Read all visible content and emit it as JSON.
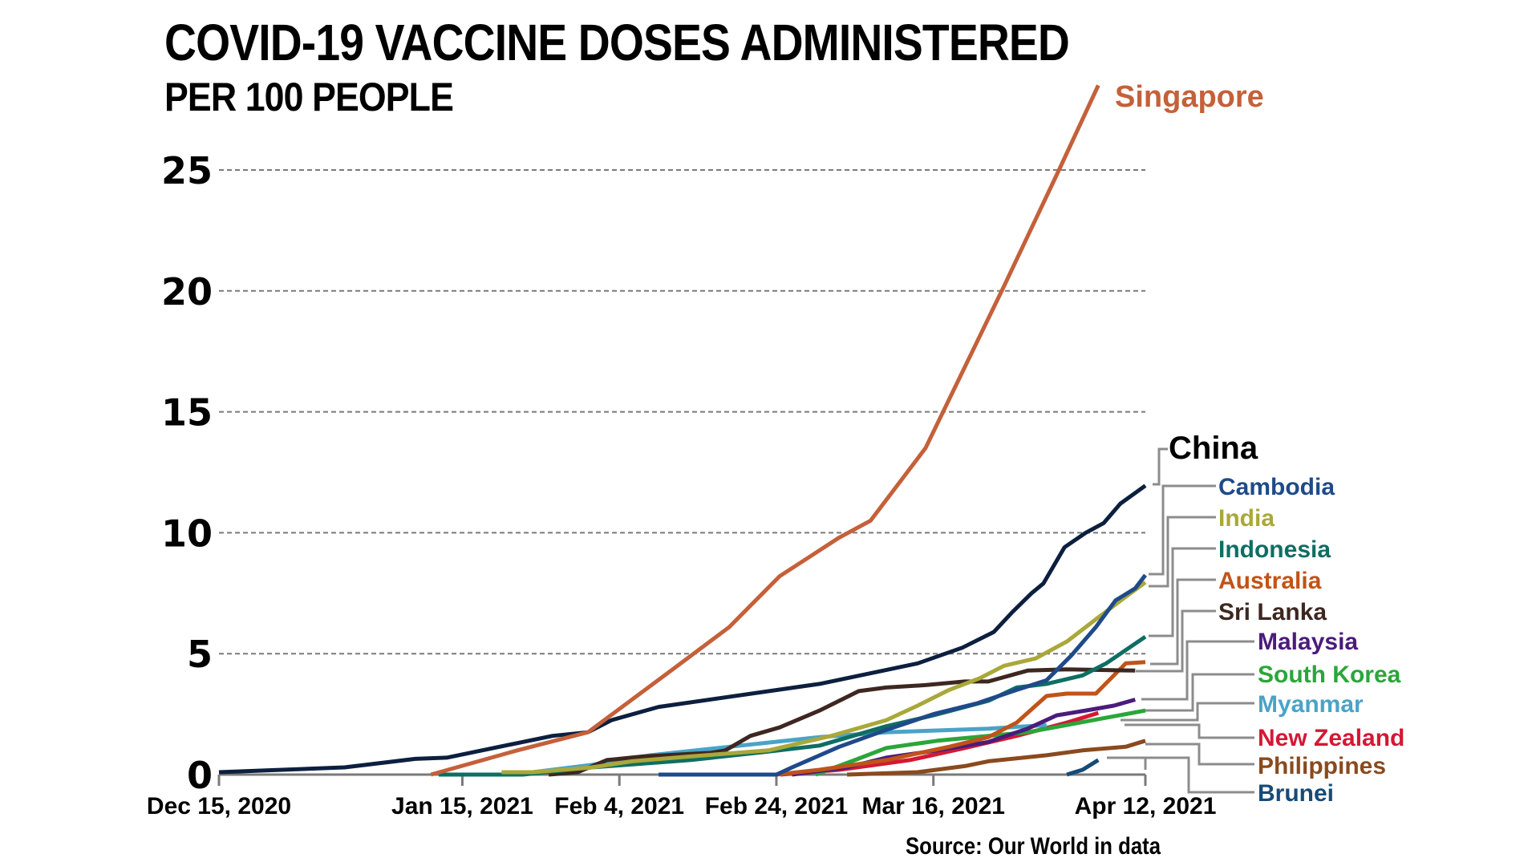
{
  "chart_data": {
    "type": "line",
    "title": "COVID-19 VACCINE DOSES ADMINISTERED",
    "subtitle": "PER 100 PEOPLE",
    "source": "Source: Our World in data",
    "xlabel": "",
    "ylabel": "",
    "x_unit": "days since Dec 15, 2020",
    "xlim": [
      0,
      118
    ],
    "ylim": [
      0,
      25
    ],
    "grid": true,
    "y_ticks": [
      0,
      5,
      10,
      15,
      20,
      25
    ],
    "y_tick_labels": [
      "0",
      "5",
      "10",
      "15",
      "20",
      "25"
    ],
    "x_ticks": [
      0,
      31,
      51,
      71,
      91,
      118
    ],
    "x_tick_labels": [
      "Dec 15, 2020",
      "Jan 15, 2021",
      "Feb 4, 2021",
      "Feb 24, 2021",
      "Mar 16, 2021",
      "Apr 12, 2021"
    ],
    "legend_placement": "right (direct labels with leader lines)",
    "series": [
      {
        "name": "Singapore",
        "color": "#c4603a",
        "x": [
          27,
          38,
          47,
          58,
          65,
          71.4,
          79,
          83,
          90,
          100,
          107,
          112
        ],
        "y": [
          0,
          1.0,
          1.75,
          4.4,
          6.1,
          8.2,
          9.8,
          10.5,
          13.5,
          20.2,
          25,
          28.5
        ]
      },
      {
        "name": "China",
        "color": "#0c1f3f",
        "x": [
          0,
          16,
          25,
          29,
          42.5,
          47,
          50,
          56,
          76.5,
          89,
          94.7,
          98.7,
          101,
          103.5,
          105,
          107.7,
          110.4,
          112.7,
          114.8,
          118
        ],
        "y": [
          0.1,
          0.3,
          0.65,
          0.7,
          1.6,
          1.75,
          2.25,
          2.8,
          3.75,
          4.6,
          5.25,
          5.9,
          6.7,
          7.5,
          7.9,
          9.4,
          10.0,
          10.4,
          11.2,
          11.95
        ]
      },
      {
        "name": "Cambodia",
        "color": "#1f4a8a",
        "x": [
          56,
          71,
          73,
          79,
          85,
          91,
          96.6,
          101.6,
          105.4,
          108.5,
          111.7,
          114.2,
          116.7,
          118
        ],
        "y": [
          0,
          0,
          0.3,
          1.15,
          1.85,
          2.5,
          2.95,
          3.5,
          3.9,
          4.9,
          6.1,
          7.2,
          7.7,
          8.25
        ]
      },
      {
        "name": "India",
        "color": "#a9a83a",
        "x": [
          36,
          40,
          47.5,
          52.6,
          60,
          70,
          78,
          85,
          89,
          93,
          97,
          100,
          104,
          108,
          112,
          115.5,
          118
        ],
        "y": [
          0.1,
          0.1,
          0.3,
          0.55,
          0.75,
          1.0,
          1.6,
          2.25,
          2.85,
          3.5,
          4.0,
          4.5,
          4.8,
          5.5,
          6.5,
          7.35,
          7.95
        ]
      },
      {
        "name": "Indonesia",
        "color": "#0e6e62",
        "x": [
          28,
          38.7,
          47.5,
          60,
          70,
          76.5,
          85,
          91,
          98,
          101.6,
          105.4,
          110,
          113,
          118
        ],
        "y": [
          0,
          0,
          0.3,
          0.6,
          0.95,
          1.2,
          2.0,
          2.45,
          3.05,
          3.6,
          3.75,
          4.1,
          4.6,
          5.7
        ]
      },
      {
        "name": "Australia",
        "color": "#c05418",
        "x": [
          71,
          76.5,
          85,
          93,
          98,
          101.6,
          105.4,
          108,
          111.7,
          115.5,
          118
        ],
        "y": [
          0,
          0.2,
          0.6,
          1.15,
          1.55,
          2.15,
          3.25,
          3.35,
          3.35,
          4.6,
          4.65
        ]
      },
      {
        "name": "Sri Lanka",
        "color": "#3d2720",
        "x": [
          42,
          45.7,
          49.4,
          54,
          62.6,
          64.5,
          67.7,
          71.4,
          76.5,
          81.5,
          85,
          90,
          95,
          98,
          103,
          108,
          116.7
        ],
        "y": [
          0,
          0.1,
          0.6,
          0.75,
          0.9,
          1.0,
          1.6,
          1.95,
          2.65,
          3.45,
          3.6,
          3.7,
          3.85,
          3.85,
          4.3,
          4.35,
          4.3
        ]
      },
      {
        "name": "Malaysia",
        "color": "#4b1b7c",
        "x": [
          73,
          80,
          85,
          91.5,
          98,
          103,
          106.7,
          110.4,
          114,
          116.7
        ],
        "y": [
          0,
          0.3,
          0.7,
          1.0,
          1.35,
          1.9,
          2.45,
          2.65,
          2.85,
          3.1
        ]
      },
      {
        "name": "South Korea",
        "color": "#2aa63a",
        "x": [
          76,
          81,
          85,
          91.5,
          98,
          103,
          108,
          113,
          118
        ],
        "y": [
          0,
          0.6,
          1.1,
          1.4,
          1.6,
          1.75,
          2.05,
          2.35,
          2.65
        ]
      },
      {
        "name": "Myanmar",
        "color": "#4aa3c8",
        "x": [
          40,
          47.5,
          55,
          65,
          76.5,
          85,
          98,
          105.4
        ],
        "y": [
          0.1,
          0.4,
          0.8,
          1.15,
          1.55,
          1.75,
          1.9,
          2.05
        ]
      },
      {
        "name": "New Zealand",
        "color": "#d41834",
        "x": [
          71.5,
          79,
          88,
          95,
          101.6,
          108,
          112
        ],
        "y": [
          0,
          0.2,
          0.6,
          1.1,
          1.6,
          2.15,
          2.55
        ]
      },
      {
        "name": "Philippines",
        "color": "#8a4a1e",
        "x": [
          80,
          89,
          95,
          98,
          105.4,
          110,
          115.5,
          118
        ],
        "y": [
          0,
          0.1,
          0.35,
          0.55,
          0.8,
          1.0,
          1.15,
          1.4
        ]
      },
      {
        "name": "Brunei",
        "color": "#164b78",
        "x": [
          108,
          110,
          112
        ],
        "y": [
          0,
          0.2,
          0.6
        ]
      }
    ],
    "label_colors": {
      "China": "#000000",
      "Cambodia": "#1f4a8a",
      "India": "#a9a83a",
      "Indonesia": "#0e6e62",
      "Australia": "#c05418",
      "Sri Lanka": "#3d2720",
      "Malaysia": "#4b1b7c",
      "South Korea": "#2aa63a",
      "Myanmar": "#4aa3c8",
      "New Zealand": "#d41834",
      "Philippines": "#8a4a1e",
      "Brunei": "#164b78",
      "Singapore": "#c4603a"
    }
  }
}
